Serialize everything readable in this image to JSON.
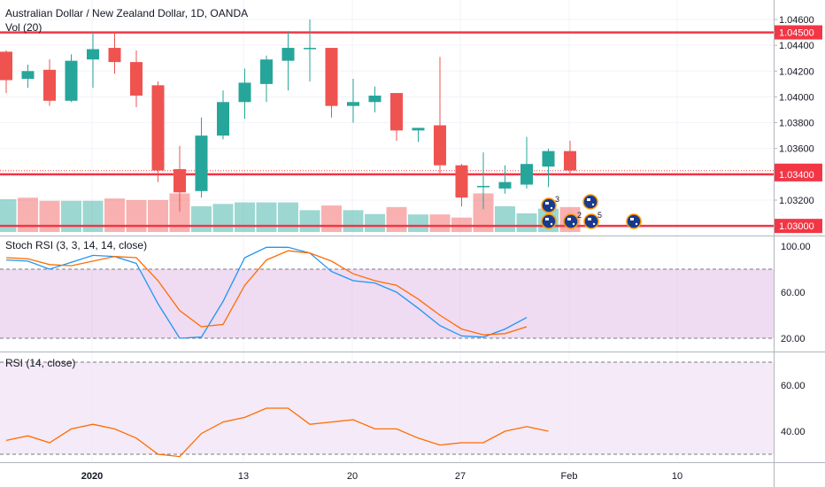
{
  "header": {
    "title": "Australian Dollar / New Zealand Dollar, 1D, OANDA",
    "volume_label": "Vol (20)"
  },
  "panes": {
    "stoch_title": "Stoch RSI (3, 3, 14, 14, close)",
    "rsi_title": "RSI (14, close)"
  },
  "colors": {
    "up": "#26a69a",
    "down": "#ef5350",
    "level_line": "#f23645",
    "k_line": "#2196f3",
    "d_line": "#ff6d00",
    "stoch_band": "#e1bee7",
    "rsi_band": "#f3e5f5",
    "rsi_line": "#ff6d00"
  },
  "chart_data": [
    {
      "type": "candlestick",
      "title": "Australian Dollar / New Zealand Dollar, 1D, OANDA",
      "x_ticks": [
        "2020",
        "13",
        "20",
        "27",
        "Feb",
        "10"
      ],
      "ylim": [
        1.029,
        1.047
      ],
      "y_ticks": [
        "1.04600",
        "1.04400",
        "1.04200",
        "1.04000",
        "1.03800",
        "1.03600",
        "1.03400",
        "1.03200"
      ],
      "price_labels": [
        {
          "value": 1.045,
          "text": "1.04500",
          "style": "line"
        },
        {
          "value": 1.03428,
          "text": "1.03428",
          "style": "dotted"
        },
        {
          "value": 1.034,
          "text": "1.03400",
          "style": "line"
        },
        {
          "value": 1.03,
          "text": "1.03000",
          "style": "line"
        }
      ],
      "candles": [
        {
          "o": 1.0435,
          "h": 1.0436,
          "l": 1.0403,
          "c": 1.0413
        },
        {
          "o": 1.0414,
          "h": 1.0425,
          "l": 1.0407,
          "c": 1.042
        },
        {
          "o": 1.0421,
          "h": 1.0429,
          "l": 1.0393,
          "c": 1.0397
        },
        {
          "o": 1.0397,
          "h": 1.0433,
          "l": 1.0396,
          "c": 1.0428
        },
        {
          "o": 1.0429,
          "h": 1.045,
          "l": 1.0407,
          "c": 1.0437
        },
        {
          "o": 1.0438,
          "h": 1.045,
          "l": 1.0418,
          "c": 1.0427
        },
        {
          "o": 1.0427,
          "h": 1.0436,
          "l": 1.0392,
          "c": 1.0401
        },
        {
          "o": 1.0409,
          "h": 1.0412,
          "l": 1.0334,
          "c": 1.0343
        },
        {
          "o": 1.0344,
          "h": 1.0362,
          "l": 1.0311,
          "c": 1.0326
        },
        {
          "o": 1.0327,
          "h": 1.0384,
          "l": 1.0322,
          "c": 1.037
        },
        {
          "o": 1.037,
          "h": 1.0405,
          "l": 1.0367,
          "c": 1.0396
        },
        {
          "o": 1.0396,
          "h": 1.0422,
          "l": 1.0383,
          "c": 1.0411
        },
        {
          "o": 1.041,
          "h": 1.0432,
          "l": 1.0396,
          "c": 1.0429
        },
        {
          "o": 1.0428,
          "h": 1.0451,
          "l": 1.0405,
          "c": 1.0438
        },
        {
          "o": 1.0438,
          "h": 1.046,
          "l": 1.0412,
          "c": 1.0438
        },
        {
          "o": 1.0438,
          "h": 1.0438,
          "l": 1.0384,
          "c": 1.0393
        },
        {
          "o": 1.0393,
          "h": 1.0414,
          "l": 1.038,
          "c": 1.0396
        },
        {
          "o": 1.0396,
          "h": 1.0408,
          "l": 1.0388,
          "c": 1.0401
        },
        {
          "o": 1.0403,
          "h": 1.0403,
          "l": 1.0366,
          "c": 1.0374
        },
        {
          "o": 1.0374,
          "h": 1.0376,
          "l": 1.0365,
          "c": 1.0376
        },
        {
          "o": 1.0378,
          "h": 1.0431,
          "l": 1.034,
          "c": 1.0347
        },
        {
          "o": 1.0347,
          "h": 1.0348,
          "l": 1.0315,
          "c": 1.0322
        },
        {
          "o": 1.0331,
          "h": 1.0357,
          "l": 1.0313,
          "c": 1.0331
        },
        {
          "o": 1.0329,
          "h": 1.0347,
          "l": 1.0325,
          "c": 1.0334
        },
        {
          "o": 1.0332,
          "h": 1.0369,
          "l": 1.0329,
          "c": 1.0348
        },
        {
          "o": 1.0346,
          "h": 1.036,
          "l": 1.033,
          "c": 1.0358
        },
        {
          "o": 1.0358,
          "h": 1.0366,
          "l": 1.034,
          "c": 1.0343
        }
      ],
      "volume": [
        0.84,
        0.88,
        0.8,
        0.8,
        0.8,
        0.86,
        0.82,
        0.82,
        0.99,
        0.66,
        0.72,
        0.76,
        0.76,
        0.76,
        0.56,
        0.68,
        0.56,
        0.46,
        0.64,
        0.45,
        0.45,
        0.37,
        0.99,
        0.66,
        0.48,
        0.6,
        0.64
      ],
      "volume_up": [
        true,
        false,
        false,
        true,
        true,
        false,
        false,
        false,
        false,
        true,
        true,
        true,
        true,
        true,
        true,
        false,
        true,
        true,
        false,
        true,
        false,
        false,
        false,
        true,
        true,
        true,
        false
      ],
      "event_markers": [
        {
          "label": "3"
        },
        {
          "label": ""
        },
        {
          "label": "2"
        },
        {
          "label": ""
        },
        {
          "label": "5"
        },
        {
          "label": ""
        }
      ]
    },
    {
      "type": "line",
      "title": "Stoch RSI (3, 3, 14, 14, close)",
      "ylim": [
        15,
        107
      ],
      "y_ticks": [
        "100.00",
        "60.00",
        "20.00"
      ],
      "band": [
        20,
        80
      ],
      "series": [
        {
          "values": [
            88,
            87,
            80,
            86,
            92,
            91,
            85,
            50,
            20,
            21,
            52,
            90,
            99,
            99,
            94,
            78,
            70,
            68,
            60,
            46,
            31,
            22,
            21,
            28,
            38
          ]
        },
        {
          "values": [
            90,
            89,
            84,
            83,
            87,
            91,
            90,
            70,
            44,
            30,
            32,
            66,
            88,
            96,
            94,
            87,
            76,
            70,
            66,
            54,
            40,
            28,
            23,
            24,
            30
          ]
        }
      ]
    },
    {
      "type": "line",
      "title": "RSI (14, close)",
      "ylim": [
        26,
        75
      ],
      "y_ticks": [
        "60.00",
        "40.00"
      ],
      "band": [
        30,
        70
      ],
      "series": [
        {
          "values": [
            36,
            38,
            35,
            41,
            43,
            41,
            37,
            30,
            29,
            39,
            44,
            46,
            50,
            50,
            43,
            44,
            45,
            41,
            41,
            37,
            34,
            35,
            35,
            40,
            42,
            40
          ]
        }
      ]
    }
  ]
}
